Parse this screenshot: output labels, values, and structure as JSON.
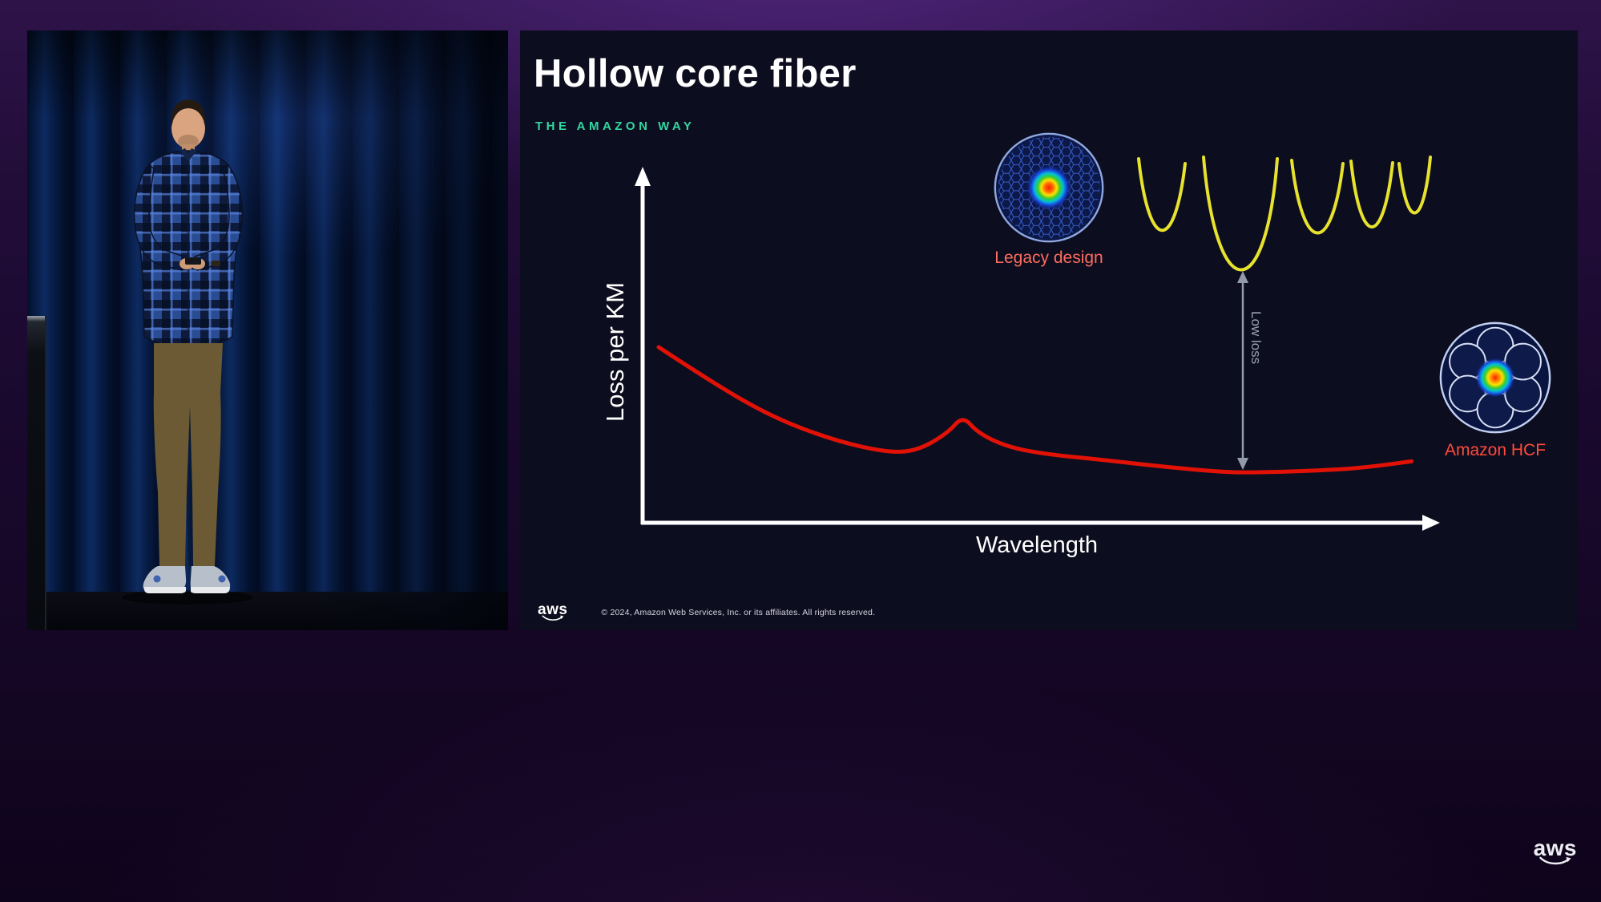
{
  "frame": {
    "description": "Conference talk video frame: presenter on stage at left, slide at right"
  },
  "stage": {
    "scene": "Presenter in blue plaid shirt and olive pants standing before dark blue stage curtains"
  },
  "slide": {
    "title": "Hollow core fiber",
    "eyebrow": "THE AMAZON WAY",
    "legacy_label": "Legacy design",
    "amazon_label": "Amazon HCF",
    "low_loss_label": "Low loss",
    "footer": {
      "logo_text": "aws",
      "copyright": "© 2024, Amazon Web Services, Inc. or its affiliates. All rights reserved."
    }
  },
  "watermark": {
    "logo_text": "aws"
  },
  "chart_data": {
    "type": "line",
    "title": "",
    "xlabel": "Wavelength",
    "ylabel": "Loss per KM",
    "x_range": [
      0,
      100
    ],
    "y_range": [
      0,
      110
    ],
    "axis_ticks": false,
    "grid": false,
    "legend": "none",
    "series": [
      {
        "name": "fiber-loss-vs-wavelength",
        "color": "#e11205",
        "x": [
          0,
          7,
          15,
          23,
          30,
          34,
          38,
          40,
          42,
          46,
          51,
          58,
          64,
          71,
          76,
          82,
          88,
          93,
          99
        ],
        "y": [
          100,
          80,
          60,
          47,
          40,
          41,
          51,
          61,
          51,
          43,
          39,
          36,
          33,
          30,
          28.5,
          29,
          30,
          31.5,
          35
        ]
      }
    ],
    "annotations": [
      {
        "type": "vertical-double-arrow",
        "label": "Low loss",
        "x": 77
      },
      {
        "type": "image-label",
        "label": "Legacy design"
      },
      {
        "type": "image-label",
        "label": "Amazon HCF"
      },
      {
        "type": "overlay",
        "label": "yellow U-shaped loss-band curves above the low-loss arrow"
      }
    ]
  }
}
